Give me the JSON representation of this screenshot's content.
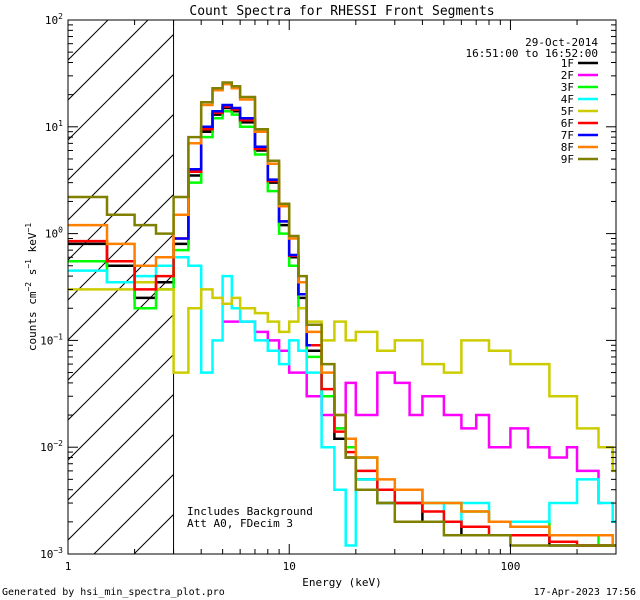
{
  "chart_data": {
    "type": "line",
    "title": "Count Spectra for RHESSI Front Segments",
    "xlabel": "Energy (keV)",
    "ylabel": "counts cm-2 s-1 keV-1",
    "xscale": "log",
    "yscale": "log",
    "xlim": [
      1,
      300
    ],
    "ylim": [
      0.001,
      100
    ],
    "x_ticks": [
      {
        "value": 1,
        "label": "1"
      },
      {
        "value": 10,
        "label": "10"
      },
      {
        "value": 100,
        "label": "100"
      }
    ],
    "y_ticks": [
      {
        "value": 0.001,
        "base": "10",
        "exp": "-3"
      },
      {
        "value": 0.01,
        "base": "10",
        "exp": "-2"
      },
      {
        "value": 0.1,
        "base": "10",
        "exp": "-1"
      },
      {
        "value": 1,
        "base": "10",
        "exp": "0"
      },
      {
        "value": 10,
        "base": "10",
        "exp": "1"
      },
      {
        "value": 100,
        "base": "10",
        "exp": "2"
      }
    ],
    "hatched_region_upper_keV": 3,
    "date": "29-Oct-2014",
    "time_range": "16:51:00 to 16:52:00",
    "annotations": [
      "Includes Background",
      "Att A0, FDecim 3"
    ],
    "series": [
      {
        "name": "1F",
        "color": "#000000",
        "x": [
          1.0,
          1.5,
          2.0,
          2.5,
          3.0,
          3.5,
          4.0,
          4.5,
          5.0,
          5.5,
          6.0,
          7.0,
          8.0,
          9.0,
          10,
          11,
          12,
          14,
          16,
          18,
          20,
          25,
          30,
          40,
          50,
          60,
          80,
          100,
          150,
          200,
          250,
          290
        ],
        "y": [
          0.8,
          0.5,
          0.25,
          0.35,
          0.8,
          3.5,
          9.0,
          13.0,
          15.0,
          14.0,
          11.0,
          6.0,
          3.0,
          1.2,
          0.6,
          0.25,
          0.08,
          0.03,
          0.012,
          0.008,
          0.005,
          0.003,
          0.003,
          0.002,
          0.002,
          0.0015,
          0.0015,
          0.0015,
          0.0012,
          0.0012,
          0.0012,
          0.0012
        ]
      },
      {
        "name": "2F",
        "color": "#ff00ff",
        "x": [
          5,
          6,
          7,
          8,
          9,
          10,
          12,
          14,
          16,
          18,
          20,
          25,
          30,
          35,
          40,
          50,
          60,
          70,
          80,
          100,
          120,
          150,
          180,
          200,
          250
        ],
        "y": [
          0.15,
          0.15,
          0.12,
          0.1,
          0.08,
          0.05,
          0.03,
          0.02,
          0.015,
          0.04,
          0.02,
          0.05,
          0.04,
          0.02,
          0.03,
          0.02,
          0.015,
          0.02,
          0.01,
          0.015,
          0.01,
          0.008,
          0.01,
          0.006,
          0.003
        ]
      },
      {
        "name": "3F",
        "color": "#00ff00",
        "x": [
          1.0,
          1.5,
          2.0,
          2.5,
          3.0,
          3.5,
          4.0,
          4.5,
          5.0,
          5.5,
          6.0,
          7.0,
          8.0,
          9.0,
          10,
          11,
          12,
          14,
          16,
          18,
          20,
          25,
          30,
          40,
          50,
          60,
          80,
          100,
          150,
          200,
          250,
          290
        ],
        "y": [
          0.55,
          0.35,
          0.2,
          0.3,
          0.7,
          3.0,
          8.0,
          12.0,
          14.0,
          13.0,
          10.0,
          5.5,
          2.5,
          1.0,
          0.5,
          0.2,
          0.07,
          0.03,
          0.015,
          0.01,
          0.008,
          0.004,
          0.004,
          0.003,
          0.003,
          0.0025,
          0.002,
          0.002,
          0.0015,
          0.0015,
          0.0012,
          0.0012
        ]
      },
      {
        "name": "4F",
        "color": "#00ffff",
        "x": [
          1.0,
          1.5,
          2.0,
          2.5,
          3.0,
          3.5,
          4.0,
          4.5,
          5.0,
          5.5,
          6.0,
          7.0,
          8.0,
          9.0,
          10,
          11,
          12,
          14,
          16,
          18,
          20,
          25,
          30,
          40,
          50,
          60,
          80,
          100,
          150,
          200,
          250,
          290
        ],
        "y": [
          0.45,
          0.35,
          0.4,
          0.5,
          0.6,
          0.5,
          0.05,
          0.1,
          0.4,
          0.2,
          0.15,
          0.1,
          0.08,
          0.06,
          0.1,
          0.08,
          0.05,
          0.01,
          0.004,
          0.0012,
          0.005,
          0.003,
          0.004,
          0.003,
          0.002,
          0.003,
          0.002,
          0.002,
          0.003,
          0.005,
          0.003,
          0.002
        ]
      },
      {
        "name": "5F",
        "color": "#cccc00",
        "x": [
          1.0,
          1.5,
          2.0,
          2.5,
          3.0,
          3.5,
          4.0,
          4.5,
          5.0,
          5.5,
          6.0,
          7.0,
          8.0,
          9.0,
          10,
          11,
          12,
          14,
          16,
          18,
          20,
          25,
          30,
          40,
          50,
          60,
          80,
          100,
          150,
          200,
          250,
          290
        ],
        "y": [
          0.3,
          0.3,
          0.35,
          0.3,
          0.05,
          0.2,
          0.3,
          0.25,
          0.22,
          0.25,
          0.2,
          0.18,
          0.15,
          0.12,
          0.15,
          0.2,
          0.15,
          0.1,
          0.15,
          0.1,
          0.12,
          0.08,
          0.1,
          0.06,
          0.05,
          0.1,
          0.08,
          0.06,
          0.03,
          0.015,
          0.01,
          0.006
        ]
      },
      {
        "name": "6F",
        "color": "#ff0000",
        "x": [
          1.0,
          1.5,
          2.0,
          2.5,
          3.0,
          3.5,
          4.0,
          4.5,
          5.0,
          5.5,
          6.0,
          7.0,
          8.0,
          9.0,
          10,
          11,
          12,
          14,
          16,
          18,
          20,
          25,
          30,
          40,
          50,
          60,
          80,
          100,
          150,
          200,
          250,
          290
        ],
        "y": [
          0.85,
          0.55,
          0.3,
          0.4,
          0.9,
          3.8,
          9.5,
          13.5,
          15.5,
          14.5,
          11.5,
          6.2,
          3.1,
          1.3,
          0.62,
          0.27,
          0.09,
          0.035,
          0.014,
          0.009,
          0.006,
          0.004,
          0.003,
          0.0025,
          0.002,
          0.0018,
          0.0015,
          0.0015,
          0.0013,
          0.0012,
          0.0012,
          0.0012
        ]
      },
      {
        "name": "7F",
        "color": "#0000ff",
        "x": [
          3.0,
          3.5,
          4.0,
          4.5,
          5.0,
          5.5,
          6.0,
          7.0,
          8.0,
          9.0,
          10,
          11,
          12
        ],
        "y": [
          0.9,
          4.0,
          10.0,
          14.0,
          16.0,
          15.0,
          12.0,
          6.5,
          3.2,
          1.3,
          0.63,
          0.27,
          0.09
        ]
      },
      {
        "name": "8F",
        "color": "#ff8000",
        "x": [
          1.0,
          1.5,
          2.0,
          2.5,
          3.0,
          3.5,
          4.0,
          4.5,
          5.0,
          5.5,
          6.0,
          7.0,
          8.0,
          9.0,
          10,
          11,
          12,
          14,
          16,
          18,
          20,
          25,
          30,
          40,
          50,
          60,
          80,
          100,
          150,
          200,
          250,
          290
        ],
        "y": [
          1.2,
          0.8,
          0.5,
          0.6,
          1.5,
          7.0,
          16.0,
          22.0,
          25.0,
          23.0,
          18.0,
          9.0,
          4.5,
          1.8,
          0.9,
          0.35,
          0.12,
          0.05,
          0.02,
          0.012,
          0.008,
          0.005,
          0.004,
          0.003,
          0.003,
          0.0025,
          0.002,
          0.0018,
          0.0015,
          0.0015,
          0.0015,
          0.0012
        ]
      },
      {
        "name": "9F",
        "color": "#808000",
        "x": [
          1.0,
          1.5,
          2.0,
          2.5,
          3.0,
          3.5,
          4.0,
          4.5,
          5.0,
          5.5,
          6.0,
          7.0,
          8.0,
          9.0,
          10,
          11,
          12,
          14,
          16,
          18,
          20,
          25,
          30,
          40,
          50,
          60,
          80,
          100,
          150,
          200,
          250,
          290
        ],
        "y": [
          2.2,
          1.5,
          1.2,
          1.0,
          2.2,
          8.0,
          17.0,
          23.0,
          26.0,
          24.0,
          19.0,
          9.5,
          4.8,
          1.9,
          0.95,
          0.4,
          0.14,
          0.06,
          0.02,
          0.008,
          0.004,
          0.003,
          0.002,
          0.002,
          0.0015,
          0.0015,
          0.0015,
          0.0012,
          0.0012,
          0.0012,
          0.0012,
          0.0012
        ]
      }
    ]
  },
  "footer": {
    "generated_by": "Generated by hsi_min_spectra_plot.pro",
    "generated_time": "17-Apr-2023 17:56"
  }
}
